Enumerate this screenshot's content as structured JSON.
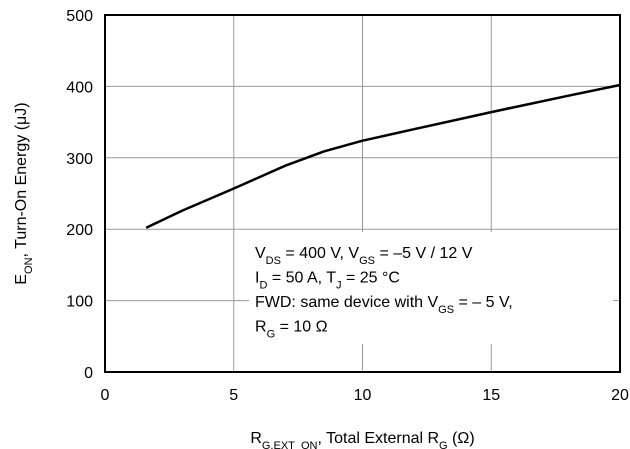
{
  "chart_data": {
    "type": "line",
    "title": "",
    "xlabel": {
      "parts": [
        {
          "t": "R",
          "sub": false
        },
        {
          "t": "G,EXT_ON",
          "sub": true
        },
        {
          "t": ", Total External R",
          "sub": false
        },
        {
          "t": "G",
          "sub": true
        },
        {
          "t": " (Ω)",
          "sub": false
        }
      ]
    },
    "ylabel": {
      "parts": [
        {
          "t": "E",
          "sub": false
        },
        {
          "t": "ON",
          "sub": true
        },
        {
          "t": ", Turn-On Energy (μJ)",
          "sub": false
        }
      ]
    },
    "xlim": [
      0,
      20
    ],
    "ylim": [
      0,
      500
    ],
    "xticks": [
      0,
      5,
      10,
      15,
      20
    ],
    "yticks": [
      0,
      100,
      200,
      300,
      400,
      500
    ],
    "grid": true,
    "series": [
      {
        "color": "#000000",
        "x": [
          1.6,
          3,
          5,
          7,
          8.5,
          10,
          12,
          15,
          18,
          20
        ],
        "y": [
          202,
          226,
          257,
          289,
          309,
          324,
          340,
          364,
          387,
          402
        ]
      }
    ],
    "annotations": [
      [
        {
          "t": "V",
          "sub": false
        },
        {
          "t": "DS",
          "sub": true
        },
        {
          "t": " = 400 V, V",
          "sub": false
        },
        {
          "t": "GS",
          "sub": true
        },
        {
          "t": " = –5 V / 12 V",
          "sub": false
        }
      ],
      [
        {
          "t": "I",
          "sub": false
        },
        {
          "t": "D",
          "sub": true
        },
        {
          "t": " = 50 A, T",
          "sub": false
        },
        {
          "t": "J",
          "sub": true
        },
        {
          "t": " = 25 °C",
          "sub": false
        }
      ],
      [
        {
          "t": "FWD: same device with V",
          "sub": false
        },
        {
          "t": "GS",
          "sub": true
        },
        {
          "t": " = – 5 V,",
          "sub": false
        }
      ],
      [
        {
          "t": "R",
          "sub": false
        },
        {
          "t": "G",
          "sub": true
        },
        {
          "t": " = 10 Ω",
          "sub": false
        }
      ]
    ]
  }
}
